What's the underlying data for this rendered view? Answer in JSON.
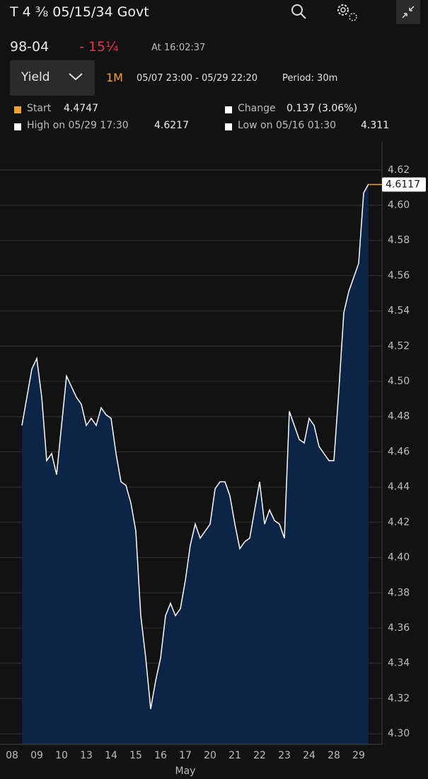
{
  "header": {
    "title": "T 4 ⅜ 05/15/34 Govt",
    "price": "98-04",
    "change": "- 15¼",
    "time": "At 16:02:37"
  },
  "toolbar": {
    "field": "Yield",
    "range": "1M",
    "span": "05/07 23:00 - 05/29 22:20",
    "period": "Period: 30m"
  },
  "stats": {
    "start_label": "Start",
    "start_value": "4.4747",
    "change_label": "Change",
    "change_value": "0.137 (3.06%)",
    "high_label": "High on 05/29 17:30",
    "high_value": "4.6217",
    "low_label": "Low on 05/16 01:30",
    "low_value": "4.311"
  },
  "chart_data": {
    "type": "area",
    "x_label": "May",
    "categories": [
      "08",
      null,
      null,
      null,
      null,
      "09",
      null,
      null,
      null,
      null,
      "10",
      null,
      null,
      null,
      null,
      "13",
      null,
      null,
      null,
      null,
      "14",
      null,
      null,
      null,
      null,
      "15",
      null,
      null,
      null,
      null,
      "16",
      null,
      null,
      null,
      null,
      "17",
      null,
      null,
      null,
      null,
      "20",
      null,
      null,
      null,
      null,
      "21",
      null,
      null,
      null,
      null,
      "22",
      null,
      null,
      null,
      null,
      "23",
      null,
      null,
      null,
      null,
      "24",
      null,
      null,
      null,
      null,
      "28",
      null,
      null,
      null,
      null,
      "29",
      null,
      null
    ],
    "values": [
      null,
      null,
      4.475,
      4.491,
      4.507,
      4.513,
      4.491,
      4.455,
      4.459,
      4.447,
      4.475,
      4.503,
      4.497,
      4.491,
      4.487,
      4.475,
      4.479,
      4.475,
      4.485,
      4.481,
      4.479,
      4.459,
      4.443,
      4.441,
      4.431,
      4.415,
      4.367,
      4.343,
      4.314,
      4.33,
      4.343,
      4.367,
      4.374,
      4.367,
      4.371,
      4.387,
      4.407,
      4.419,
      4.411,
      4.415,
      4.419,
      4.439,
      4.443,
      4.443,
      4.435,
      4.419,
      4.405,
      4.409,
      4.411,
      4.427,
      4.443,
      4.419,
      4.427,
      4.421,
      4.419,
      4.411,
      4.483,
      4.475,
      4.467,
      4.465,
      4.479,
      4.475,
      4.463,
      4.459,
      4.455,
      4.455,
      4.495,
      4.539,
      4.551,
      4.559,
      4.567,
      4.607,
      4.612
    ],
    "last_value": 4.6117,
    "color": "#ffffff",
    "fill": "#0d2447",
    "marker_color": "#f0a030",
    "ylim": [
      4.294,
      4.636
    ],
    "yticks": [
      {
        "value": 4.3,
        "label": "4.30"
      },
      4.32,
      4.34,
      4.36,
      4.38,
      {
        "value": 4.4,
        "label": "4.40"
      },
      4.42,
      4.44,
      4.46,
      4.48,
      {
        "value": 4.5,
        "label": "4.50"
      },
      4.52,
      4.54,
      4.56,
      4.58,
      {
        "value": 4.6,
        "label": "4.60"
      },
      4.62
    ],
    "grid": true
  }
}
